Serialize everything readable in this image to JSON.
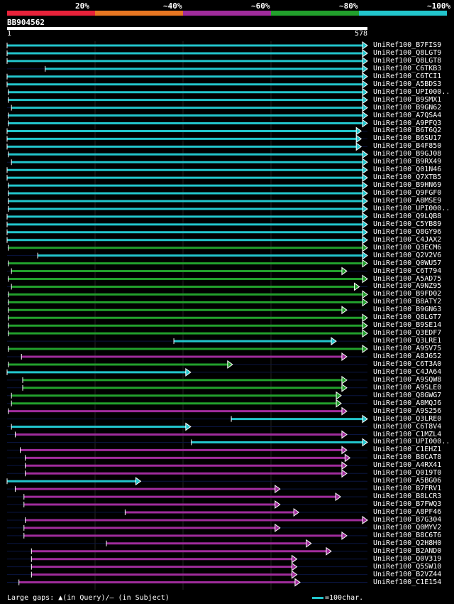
{
  "legend": [
    {
      "label": "20%",
      "color": "#e8223a"
    },
    {
      "label": "~40%",
      "color": "#e87722"
    },
    {
      "label": "~60%",
      "color": "#a02c9c"
    },
    {
      "label": "~80%",
      "color": "#22a02c"
    },
    {
      "label": "~100%",
      "color": "#22c5cc"
    }
  ],
  "query": {
    "id": "BB904562",
    "start": "1",
    "end": "578",
    "length": 578
  },
  "footer": {
    "text": "Large gaps: ▲(in Query)/— (in Subject)",
    "scale_key": "=100char."
  },
  "colors": {
    "cyan": "#22c5cc",
    "green": "#22a02c",
    "magenta": "#a02c9c"
  },
  "hits": [
    {
      "name": "UniRef100_B7FIS9",
      "color": "cyan",
      "start": 1,
      "end": 578
    },
    {
      "name": "UniRef100_Q8LGT9",
      "color": "cyan",
      "start": 1,
      "end": 578
    },
    {
      "name": "UniRef100_Q8LGT8",
      "color": "cyan",
      "start": 1,
      "end": 578
    },
    {
      "name": "UniRef100_C6TKB3",
      "color": "cyan",
      "start": 62,
      "end": 578
    },
    {
      "name": "UniRef100_C6TCI1",
      "color": "cyan",
      "start": 1,
      "end": 578
    },
    {
      "name": "UniRef100_A5BDS3",
      "color": "cyan",
      "start": 1,
      "end": 578
    },
    {
      "name": "UniRef100_UPI000..",
      "color": "cyan",
      "start": 3,
      "end": 578
    },
    {
      "name": "UniRef100_B9SMX1",
      "color": "cyan",
      "start": 3,
      "end": 578
    },
    {
      "name": "UniRef100_B9GN62",
      "color": "cyan",
      "start": 8,
      "end": 578
    },
    {
      "name": "UniRef100_A7QSA4",
      "color": "cyan",
      "start": 3,
      "end": 578
    },
    {
      "name": "UniRef100_A9PFQ3",
      "color": "cyan",
      "start": 3,
      "end": 578
    },
    {
      "name": "UniRef100_B6T6Q2",
      "color": "cyan",
      "start": 1,
      "end": 568
    },
    {
      "name": "UniRef100_B6SU17",
      "color": "cyan",
      "start": 1,
      "end": 568
    },
    {
      "name": "UniRef100_B4F850",
      "color": "cyan",
      "start": 1,
      "end": 568
    },
    {
      "name": "UniRef100_B9GJ08",
      "color": "cyan",
      "start": 3,
      "end": 578
    },
    {
      "name": "UniRef100_B9RX49",
      "color": "cyan",
      "start": 8,
      "end": 578
    },
    {
      "name": "UniRef100_Q01N46",
      "color": "cyan",
      "start": 1,
      "end": 578
    },
    {
      "name": "UniRef100_Q7XTB5",
      "color": "cyan",
      "start": 1,
      "end": 578
    },
    {
      "name": "UniRef100_B9HN69",
      "color": "cyan",
      "start": 3,
      "end": 578
    },
    {
      "name": "UniRef100_Q9FGF0",
      "color": "cyan",
      "start": 3,
      "end": 578
    },
    {
      "name": "UniRef100_A8MSE9",
      "color": "cyan",
      "start": 3,
      "end": 578
    },
    {
      "name": "UniRef100_UPI000..",
      "color": "cyan",
      "start": 3,
      "end": 578
    },
    {
      "name": "UniRef100_Q9LQB8",
      "color": "cyan",
      "start": 1,
      "end": 578
    },
    {
      "name": "UniRef100_C5YB89",
      "color": "cyan",
      "start": 1,
      "end": 578
    },
    {
      "name": "UniRef100_Q8GY96",
      "color": "cyan",
      "start": 1,
      "end": 578
    },
    {
      "name": "UniRef100_C4JAX2",
      "color": "cyan",
      "start": 1,
      "end": 578
    },
    {
      "name": "UniRef100_Q3ECM6",
      "color": "green",
      "start": 3,
      "end": 578
    },
    {
      "name": "UniRef100_Q2V2V6",
      "color": "cyan",
      "start": 50,
      "end": 578
    },
    {
      "name": "UniRef100_Q0WU57",
      "color": "green",
      "start": 3,
      "end": 578
    },
    {
      "name": "UniRef100_C6T794",
      "color": "green",
      "start": 8,
      "end": 545
    },
    {
      "name": "UniRef100_A5AD75",
      "color": "green",
      "start": 3,
      "end": 578
    },
    {
      "name": "UniRef100_A9NZ95",
      "color": "green",
      "start": 8,
      "end": 565
    },
    {
      "name": "UniRef100_B9FD02",
      "color": "green",
      "start": 3,
      "end": 578
    },
    {
      "name": "UniRef100_B8ATY2",
      "color": "green",
      "start": 3,
      "end": 578
    },
    {
      "name": "UniRef100_B9GN63",
      "color": "green",
      "start": 3,
      "end": 545
    },
    {
      "name": "UniRef100_Q8LGT7",
      "color": "green",
      "start": 3,
      "end": 578
    },
    {
      "name": "UniRef100_B9SE14",
      "color": "green",
      "start": 3,
      "end": 578
    },
    {
      "name": "UniRef100_Q3EDF7",
      "color": "green",
      "start": 3,
      "end": 578
    },
    {
      "name": "UniRef100_Q3LRE1",
      "color": "cyan",
      "start": 268,
      "end": 528
    },
    {
      "name": "UniRef100_A9SV75",
      "color": "green",
      "start": 3,
      "end": 578
    },
    {
      "name": "UniRef100_A8J652",
      "color": "magenta",
      "start": 24,
      "end": 545
    },
    {
      "name": "UniRef100_C6T3A0",
      "color": "green",
      "start": 3,
      "end": 362
    },
    {
      "name": "UniRef100_C4JA64",
      "color": "cyan",
      "start": 1,
      "end": 295
    },
    {
      "name": "UniRef100_A9SQW8",
      "color": "green",
      "start": 26,
      "end": 545
    },
    {
      "name": "UniRef100_A9SLE0",
      "color": "green",
      "start": 26,
      "end": 545
    },
    {
      "name": "UniRef100_Q8GWG7",
      "color": "green",
      "start": 8,
      "end": 536
    },
    {
      "name": "UniRef100_A8MQJ6",
      "color": "green",
      "start": 8,
      "end": 536
    },
    {
      "name": "UniRef100_A9S256",
      "color": "magenta",
      "start": 3,
      "end": 545
    },
    {
      "name": "UniRef100_Q3LRE0",
      "color": "cyan",
      "start": 360,
      "end": 578
    },
    {
      "name": "UniRef100_C6T8V4",
      "color": "cyan",
      "start": 8,
      "end": 295
    },
    {
      "name": "UniRef100_C1MZL4",
      "color": "magenta",
      "start": 14,
      "end": 545
    },
    {
      "name": "UniRef100_UPI000..",
      "color": "cyan",
      "start": 296,
      "end": 578
    },
    {
      "name": "UniRef100_C1EHZ1",
      "color": "magenta",
      "start": 22,
      "end": 545
    },
    {
      "name": "UniRef100_B8CAT8",
      "color": "magenta",
      "start": 30,
      "end": 550
    },
    {
      "name": "UniRef100_A4RX41",
      "color": "magenta",
      "start": 30,
      "end": 545
    },
    {
      "name": "UniRef100_Q019T0",
      "color": "magenta",
      "start": 30,
      "end": 545
    },
    {
      "name": "UniRef100_A5BG06",
      "color": "cyan",
      "start": 1,
      "end": 215
    },
    {
      "name": "UniRef100_B7FRV1",
      "color": "magenta",
      "start": 14,
      "end": 438
    },
    {
      "name": "UniRef100_B8LCR3",
      "color": "magenta",
      "start": 28,
      "end": 535
    },
    {
      "name": "UniRef100_B7FWQ3",
      "color": "magenta",
      "start": 28,
      "end": 438
    },
    {
      "name": "UniRef100_A8PF46",
      "color": "magenta",
      "start": 190,
      "end": 468
    },
    {
      "name": "UniRef100_B7G304",
      "color": "magenta",
      "start": 30,
      "end": 578
    },
    {
      "name": "UniRef100_Q0MYV2",
      "color": "magenta",
      "start": 28,
      "end": 438
    },
    {
      "name": "UniRef100_B8C6T6",
      "color": "magenta",
      "start": 28,
      "end": 545
    },
    {
      "name": "UniRef100_Q2H8H0",
      "color": "magenta",
      "start": 160,
      "end": 488
    },
    {
      "name": "UniRef100_B2AND0",
      "color": "magenta",
      "start": 40,
      "end": 520
    },
    {
      "name": "UniRef100_Q0V319",
      "color": "magenta",
      "start": 40,
      "end": 465
    },
    {
      "name": "UniRef100_Q5SW10",
      "color": "magenta",
      "start": 40,
      "end": 465
    },
    {
      "name": "UniRef100_B2VZ44",
      "color": "magenta",
      "start": 40,
      "end": 465
    },
    {
      "name": "UniRef100_C1E154",
      "color": "magenta",
      "start": 20,
      "end": 470
    }
  ]
}
